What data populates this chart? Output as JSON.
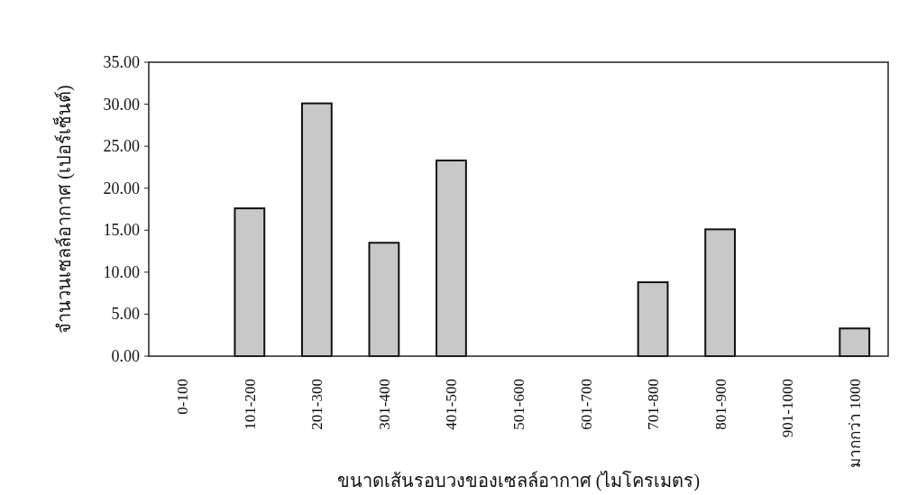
{
  "chart_data": {
    "type": "bar",
    "xlabel": "ขนาดเส้นรอบวงของเซลล์อากาศ (ไมโครเมตร)",
    "ylabel": "จำนวนเซลล์อากาศ (เปอร์เซ็นต์)",
    "categories": [
      "0-100",
      "101-200",
      "201-300",
      "301-400",
      "401-500",
      "501-600",
      "601-700",
      "701-800",
      "801-900",
      "901-1000",
      "มากกว่า 1000"
    ],
    "values": [
      0,
      17.6,
      30.1,
      13.5,
      23.3,
      0,
      0,
      8.8,
      15.1,
      0,
      3.3
    ],
    "color": "#c8c8c8",
    "ylim": [
      0,
      35
    ],
    "yticks": [
      {
        "value": 0,
        "label": "0.00"
      },
      {
        "value": 5,
        "label": "5.00"
      },
      {
        "value": 10,
        "label": "10.00"
      },
      {
        "value": 15,
        "label": "15.00"
      },
      {
        "value": 20,
        "label": "20.00"
      },
      {
        "value": 25,
        "label": "25.00"
      },
      {
        "value": 30,
        "label": "30.00"
      },
      {
        "value": 35,
        "label": "35.00"
      }
    ],
    "grid": false
  }
}
